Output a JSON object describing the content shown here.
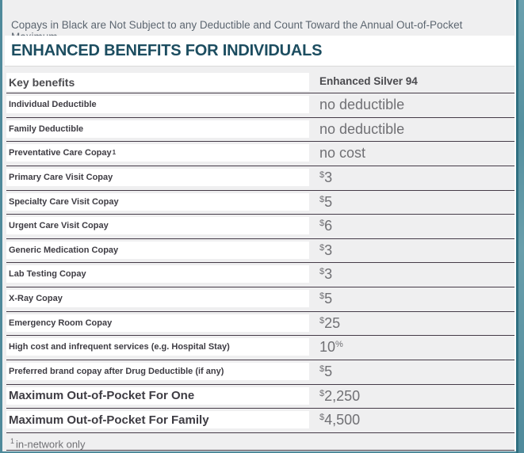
{
  "notice": "Copays in Black are Not Subject to any Deductible and Count Toward the Annual Out-of-Pocket Maximum",
  "heading": "ENHANCED BENEFITS FOR INDIVIDUALS",
  "table": {
    "header": {
      "key_column": "Key benefits",
      "plan_column": "Enhanced Silver 94"
    },
    "rows": [
      {
        "label": "Individual Deductible",
        "value": "no deductible"
      },
      {
        "label": "Family Deductible",
        "value": "no deductible"
      },
      {
        "label": "Preventative Care Copay",
        "label_sup": "1",
        "value": "no cost"
      },
      {
        "label": "Primary Care Visit Copay",
        "value": "$3"
      },
      {
        "label": "Specialty Care Visit Copay",
        "value": "$5"
      },
      {
        "label": "Urgent Care Visit Copay",
        "value": "$6"
      },
      {
        "label": "Generic Medication Copay",
        "value": "$3"
      },
      {
        "label": "Lab Testing Copay",
        "value": "$3"
      },
      {
        "label": "X-Ray Copay",
        "value": "$5"
      },
      {
        "label": "Emergency Room Copay",
        "value": "$25"
      },
      {
        "label": "High cost and infrequent services (e.g. Hospital Stay)",
        "value": "10%"
      },
      {
        "label": "Preferred brand copay after Drug Deductible (if any)",
        "value": "$5"
      },
      {
        "label": "Maximum Out-of-Pocket For One",
        "value": "$2,250",
        "emphasis": true
      },
      {
        "label": "Maximum Out-of-Pocket For Family",
        "value": "$4,500",
        "emphasis": true
      }
    ]
  },
  "footnote": {
    "sup": "1",
    "text": "in-network only"
  },
  "colors": {
    "heading_text": "#1c4d60",
    "notice_text": "#5c6670",
    "label_text": "#3e3c43",
    "value_text": "#707074",
    "row_border": "#453b48",
    "panel_bg": "#efeff0",
    "cell_bg": "#ffffff",
    "heading_divider": "#d9d9d9",
    "edge_teal": "#4f8a9b",
    "edge_teal_dark": "#2f6f80",
    "edge_gap": "#fdfdfd"
  }
}
